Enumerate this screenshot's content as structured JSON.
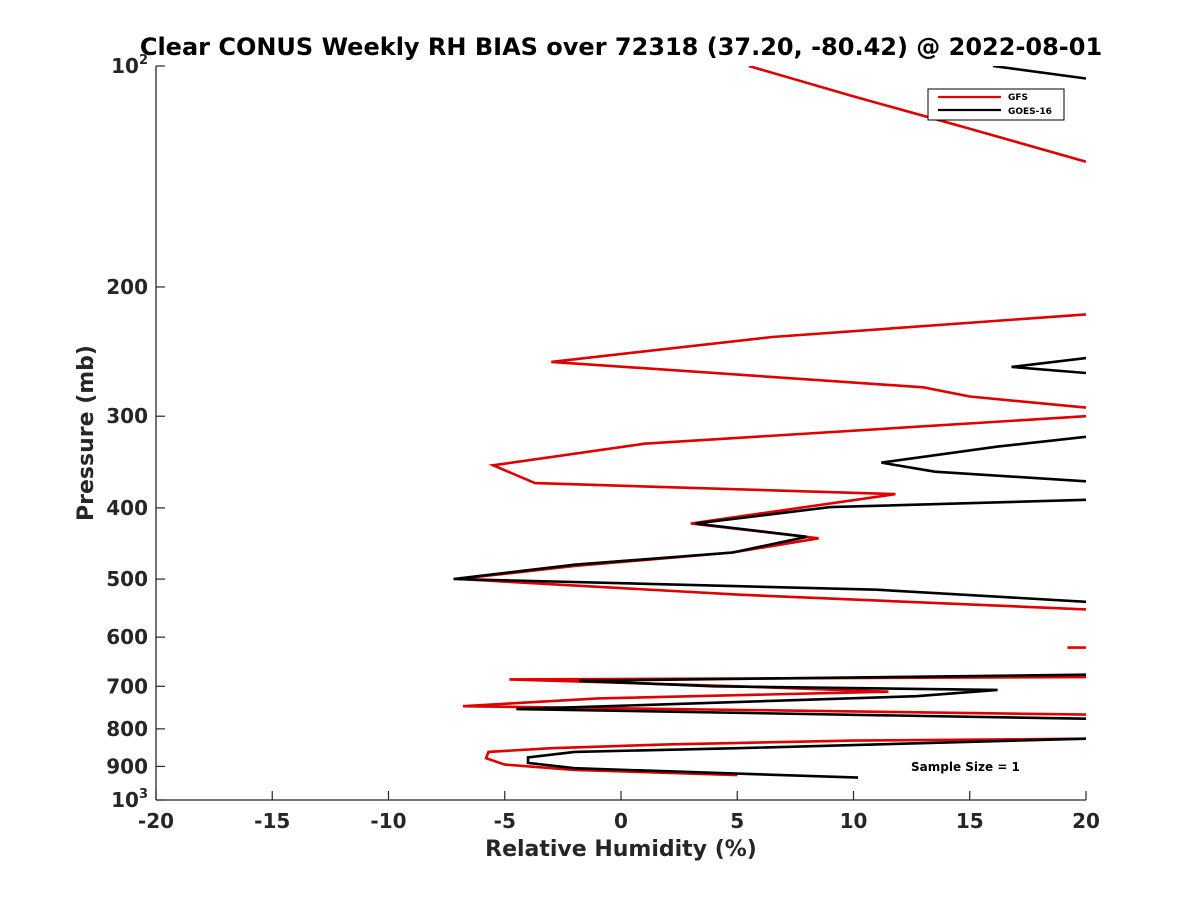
{
  "chart_data": {
    "type": "line",
    "title": "Clear CONUS Weekly RH BIAS over 72318 (37.20, -80.42) @ 2022-08-01",
    "xlabel": "Relative Humidity (%)",
    "ylabel": "Pressure (mb)",
    "xlim": [
      -20,
      20
    ],
    "ylim": [
      100,
      1000
    ],
    "y_scale": "log",
    "y_reversed": true,
    "grid": false,
    "legend_position": "top-right",
    "x_ticks": [
      {
        "value": -20,
        "label": "-20"
      },
      {
        "value": -15,
        "label": "-15"
      },
      {
        "value": -10,
        "label": "-10"
      },
      {
        "value": -5,
        "label": "-5"
      },
      {
        "value": 0,
        "label": "0"
      },
      {
        "value": 5,
        "label": "5"
      },
      {
        "value": 10,
        "label": "10"
      },
      {
        "value": 15,
        "label": "15"
      },
      {
        "value": 20,
        "label": "20"
      }
    ],
    "y_ticks": [
      {
        "value": 100,
        "base": "10",
        "exp": "2"
      },
      {
        "value": 200,
        "base": "200",
        "exp": ""
      },
      {
        "value": 300,
        "base": "300",
        "exp": ""
      },
      {
        "value": 400,
        "base": "400",
        "exp": ""
      },
      {
        "value": 500,
        "base": "500",
        "exp": ""
      },
      {
        "value": 600,
        "base": "600",
        "exp": ""
      },
      {
        "value": 700,
        "base": "700",
        "exp": ""
      },
      {
        "value": 800,
        "base": "800",
        "exp": ""
      },
      {
        "value": 900,
        "base": "900",
        "exp": ""
      },
      {
        "value": 1000,
        "base": "10",
        "exp": "3"
      }
    ],
    "series": [
      {
        "name": "GFS",
        "color": "#e00000",
        "segments": [
          [
            [
              5,
              925
            ],
            [
              -2,
              910
            ],
            [
              -5,
              895
            ],
            [
              -5.8,
              877
            ],
            [
              -5.7,
              860
            ],
            [
              -3,
              850
            ],
            [
              2,
              840
            ],
            [
              10,
              830
            ],
            [
              20,
              825
            ]
          ],
          [
            [
              20,
              765
            ],
            [
              -6.8,
              745
            ],
            [
              -1,
              727
            ],
            [
              11.5,
              712
            ],
            [
              5,
              700
            ],
            [
              -4.8,
              685
            ],
            [
              20,
              680
            ]
          ],
          [
            [
              20,
              620
            ],
            [
              19.2,
              620
            ]
          ],
          [
            [
              20,
              550
            ],
            [
              5,
              525
            ],
            [
              -7,
              500
            ],
            [
              -2,
              480
            ],
            [
              4.8,
              460
            ],
            [
              8.5,
              440
            ],
            [
              3,
              420
            ],
            [
              11.8,
              383
            ],
            [
              -3.7,
              370
            ],
            [
              -5.5,
              350
            ],
            [
              1,
              327
            ],
            [
              20,
              300
            ]
          ],
          [
            [
              20,
              292
            ],
            [
              15,
              282
            ],
            [
              13,
              274
            ],
            [
              -3,
              253
            ],
            [
              6.5,
              234
            ],
            [
              20,
              218
            ]
          ],
          [
            [
              20,
              135
            ],
            [
              14.7,
              121
            ],
            [
              10,
              110
            ],
            [
              5.5,
              100
            ]
          ]
        ]
      },
      {
        "name": "GOES-16",
        "color": "#000000",
        "segments": [
          [
            [
              10.2,
              932
            ],
            [
              -2,
              905
            ],
            [
              -4,
              890
            ],
            [
              -4,
              875
            ],
            [
              -2,
              860
            ],
            [
              5,
              850
            ],
            [
              20,
              825
            ]
          ],
          [
            [
              20,
              775
            ],
            [
              -4.5,
              752
            ],
            [
              12.7,
              722
            ],
            [
              16.2,
              708
            ],
            [
              4,
              700
            ],
            [
              -1.8,
              688
            ],
            [
              20,
              675
            ]
          ],
          [
            [
              20,
              537
            ],
            [
              11,
              517
            ],
            [
              -7.2,
              500
            ],
            [
              -2,
              478
            ],
            [
              4.8,
              460
            ],
            [
              8,
              438
            ],
            [
              3.2,
              420
            ],
            [
              9,
              399
            ],
            [
              20,
              390
            ]
          ],
          [
            [
              20,
              368
            ],
            [
              13.5,
              357
            ],
            [
              11.2,
              347
            ],
            [
              16.2,
              330
            ],
            [
              20,
              320
            ]
          ],
          [
            [
              20,
              262
            ],
            [
              16.8,
              257
            ],
            [
              20,
              250
            ]
          ],
          [
            [
              20,
              104
            ],
            [
              16,
              100
            ]
          ]
        ]
      }
    ],
    "annotations": [
      "Sample Size = 1"
    ]
  }
}
